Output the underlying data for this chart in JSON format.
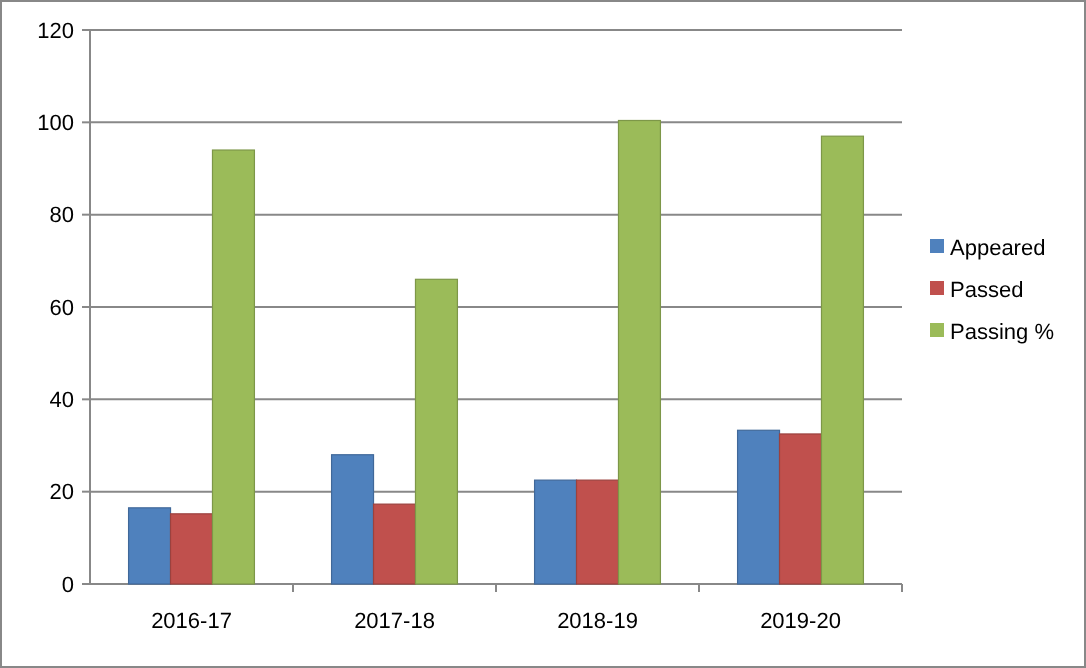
{
  "chart_data": {
    "type": "bar",
    "categories": [
      "2016-17",
      "2017-18",
      "2018-19",
      "2019-20"
    ],
    "series": [
      {
        "name": "Appeared",
        "color": "#4f81bd",
        "values": [
          16.5,
          28,
          22.5,
          33.3
        ]
      },
      {
        "name": "Passed",
        "color": "#c0504d",
        "values": [
          15.2,
          17.3,
          22.5,
          32.5
        ]
      },
      {
        "name": "Passing %",
        "color": "#9bbb59",
        "values": [
          94,
          66,
          100.4,
          97
        ]
      }
    ],
    "ylim": [
      0,
      120
    ],
    "yticks": [
      0,
      20,
      40,
      60,
      80,
      100,
      120
    ],
    "grid": "y",
    "legend": "right"
  }
}
